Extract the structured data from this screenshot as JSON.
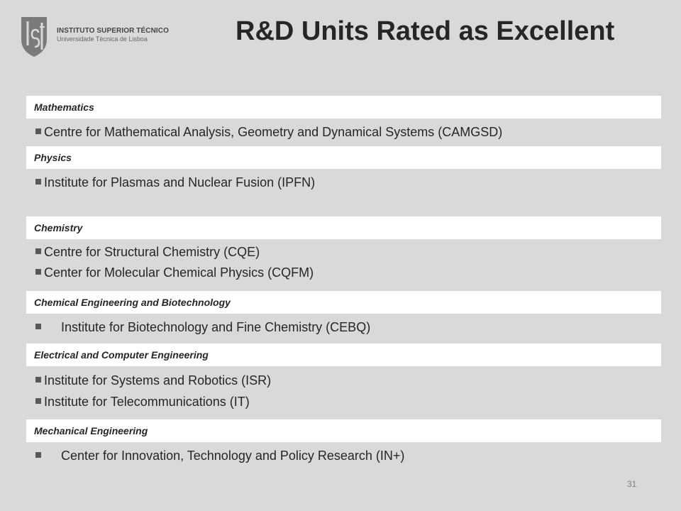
{
  "header": {
    "institute_name": "INSTITUTO SUPERIOR TÉCNICO",
    "university": "Universidade Técnica de Lisboa",
    "title": "R&D Units Rated as Excellent"
  },
  "sections": [
    {
      "heading": "Mathematics",
      "items": [
        "Centre for Mathematical Analysis, Geometry and Dynamical Systems (CAMGSD)"
      ]
    },
    {
      "heading": "Physics",
      "items": [
        "Institute for Plasmas and Nuclear Fusion (IPFN)"
      ]
    },
    {
      "heading": "Chemistry",
      "items": [
        "Centre for Structural Chemistry (CQE)",
        "Center for Molecular Chemical Physics (CQFM)"
      ]
    },
    {
      "heading": "Chemical Engineering and Biotechnology",
      "items": [
        "Institute for Biotechnology and Fine Chemistry (CEBQ)"
      ]
    },
    {
      "heading": "Electrical and Computer Engineering",
      "items": [
        "Institute for Systems and Robotics (ISR)",
        "Institute for Telecommunications (IT)"
      ]
    },
    {
      "heading": "Mechanical Engineering",
      "items": [
        "Center for Innovation, Technology and Policy Research (IN+)"
      ]
    }
  ],
  "page_number": "31",
  "colors": {
    "background": "#d9d9d9",
    "band": "#ffffff",
    "logo": "#7a7a7a",
    "text": "#262626"
  },
  "icons": {
    "logo": "ist-shield-logo-icon",
    "bullet": "square-bullet-icon"
  }
}
